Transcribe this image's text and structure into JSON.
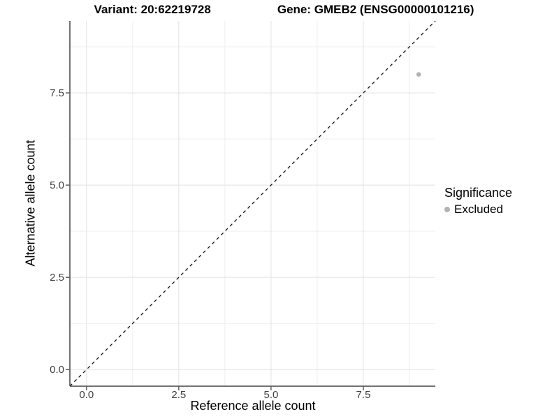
{
  "header": {
    "variant_title": "Variant: 20:62219728",
    "gene_title": "Gene: GMEB2 (ENSG00000101216)"
  },
  "chart_data": {
    "type": "scatter",
    "xlabel": "Reference allele count",
    "ylabel": "Alternative allele count",
    "xlim": [
      -0.45,
      9.45
    ],
    "ylim": [
      -0.45,
      9.45
    ],
    "xticks": {
      "values": [
        0,
        2.5,
        5,
        7.5
      ],
      "labels": [
        "0.0",
        "2.5",
        "5.0",
        "7.5"
      ]
    },
    "yticks": {
      "values": [
        0,
        2.5,
        5,
        7.5
      ],
      "labels": [
        "0.0",
        "2.5",
        "5.0",
        "7.5"
      ]
    },
    "minor_ticks": [
      1.25,
      3.75,
      6.25,
      8.75
    ],
    "grid": {
      "on": true,
      "major_color": "#e5e5e5",
      "minor_color": "#efefef"
    },
    "identity_line": {
      "show": true,
      "equation": "y = x",
      "style": "dashed",
      "color": "#111111"
    },
    "axis_line_color": "#444444",
    "points": [
      {
        "x": 9,
        "y": 8,
        "series": "Excluded"
      }
    ],
    "series": [
      {
        "name": "Excluded",
        "color": "#b3b3b3"
      }
    ],
    "legend": {
      "title": "Significance",
      "position": "right",
      "items": [
        {
          "label": "Excluded",
          "color": "#b3b3b3"
        }
      ]
    }
  }
}
